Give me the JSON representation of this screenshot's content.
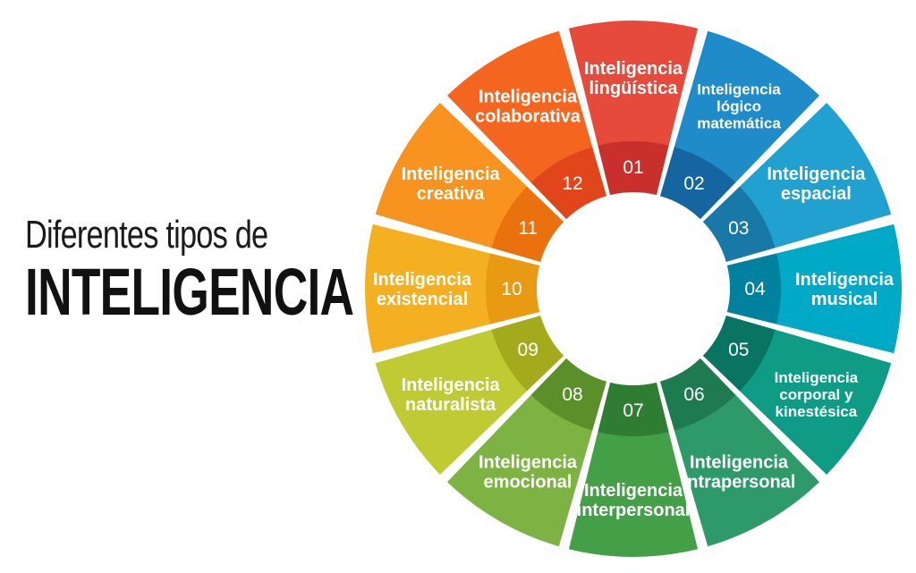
{
  "heading": {
    "subtitle": "Diferentes tipos de",
    "title": "INTELIGENCIA"
  },
  "segments": [
    {
      "number": "01",
      "lines": [
        "Inteligencia",
        "lingüística"
      ],
      "color": "#e64a3b",
      "dark": "#c9302c"
    },
    {
      "number": "02",
      "lines": [
        "Inteligencia",
        "lógico",
        "matemática"
      ],
      "color": "#1f8bc8",
      "dark": "#1565a0"
    },
    {
      "number": "03",
      "lines": [
        "Inteligencia",
        "espacial"
      ],
      "color": "#21a1cf",
      "dark": "#1878a8"
    },
    {
      "number": "04",
      "lines": [
        "Inteligencia",
        "musical"
      ],
      "color": "#00a9c6",
      "dark": "#00829e"
    },
    {
      "number": "05",
      "lines": [
        "Inteligencia",
        "corporal y",
        "kinestésica"
      ],
      "color": "#0f9c86",
      "dark": "#087461"
    },
    {
      "number": "06",
      "lines": [
        "Inteligencia",
        "intrapersonal"
      ],
      "color": "#2e9a6a",
      "dark": "#1e7a4f"
    },
    {
      "number": "07",
      "lines": [
        "Inteligencia",
        "interpersonal"
      ],
      "color": "#43a047",
      "dark": "#2e7d32"
    },
    {
      "number": "08",
      "lines": [
        "Inteligencia",
        "emocional"
      ],
      "color": "#7cb342",
      "dark": "#5a8f2a"
    },
    {
      "number": "09",
      "lines": [
        "Inteligencia",
        "naturalista"
      ],
      "color": "#c0ca33",
      "dark": "#a3ab1d"
    },
    {
      "number": "10",
      "lines": [
        "Inteligencia",
        "existencial"
      ],
      "color": "#f5b021",
      "dark": "#e79a12"
    },
    {
      "number": "11",
      "lines": [
        "Inteligencia",
        "creativa"
      ],
      "color": "#f7931e",
      "dark": "#e9720f"
    },
    {
      "number": "12",
      "lines": [
        "Inteligencia",
        "colaborativa"
      ],
      "color": "#f4661f",
      "dark": "#e0461a"
    }
  ]
}
